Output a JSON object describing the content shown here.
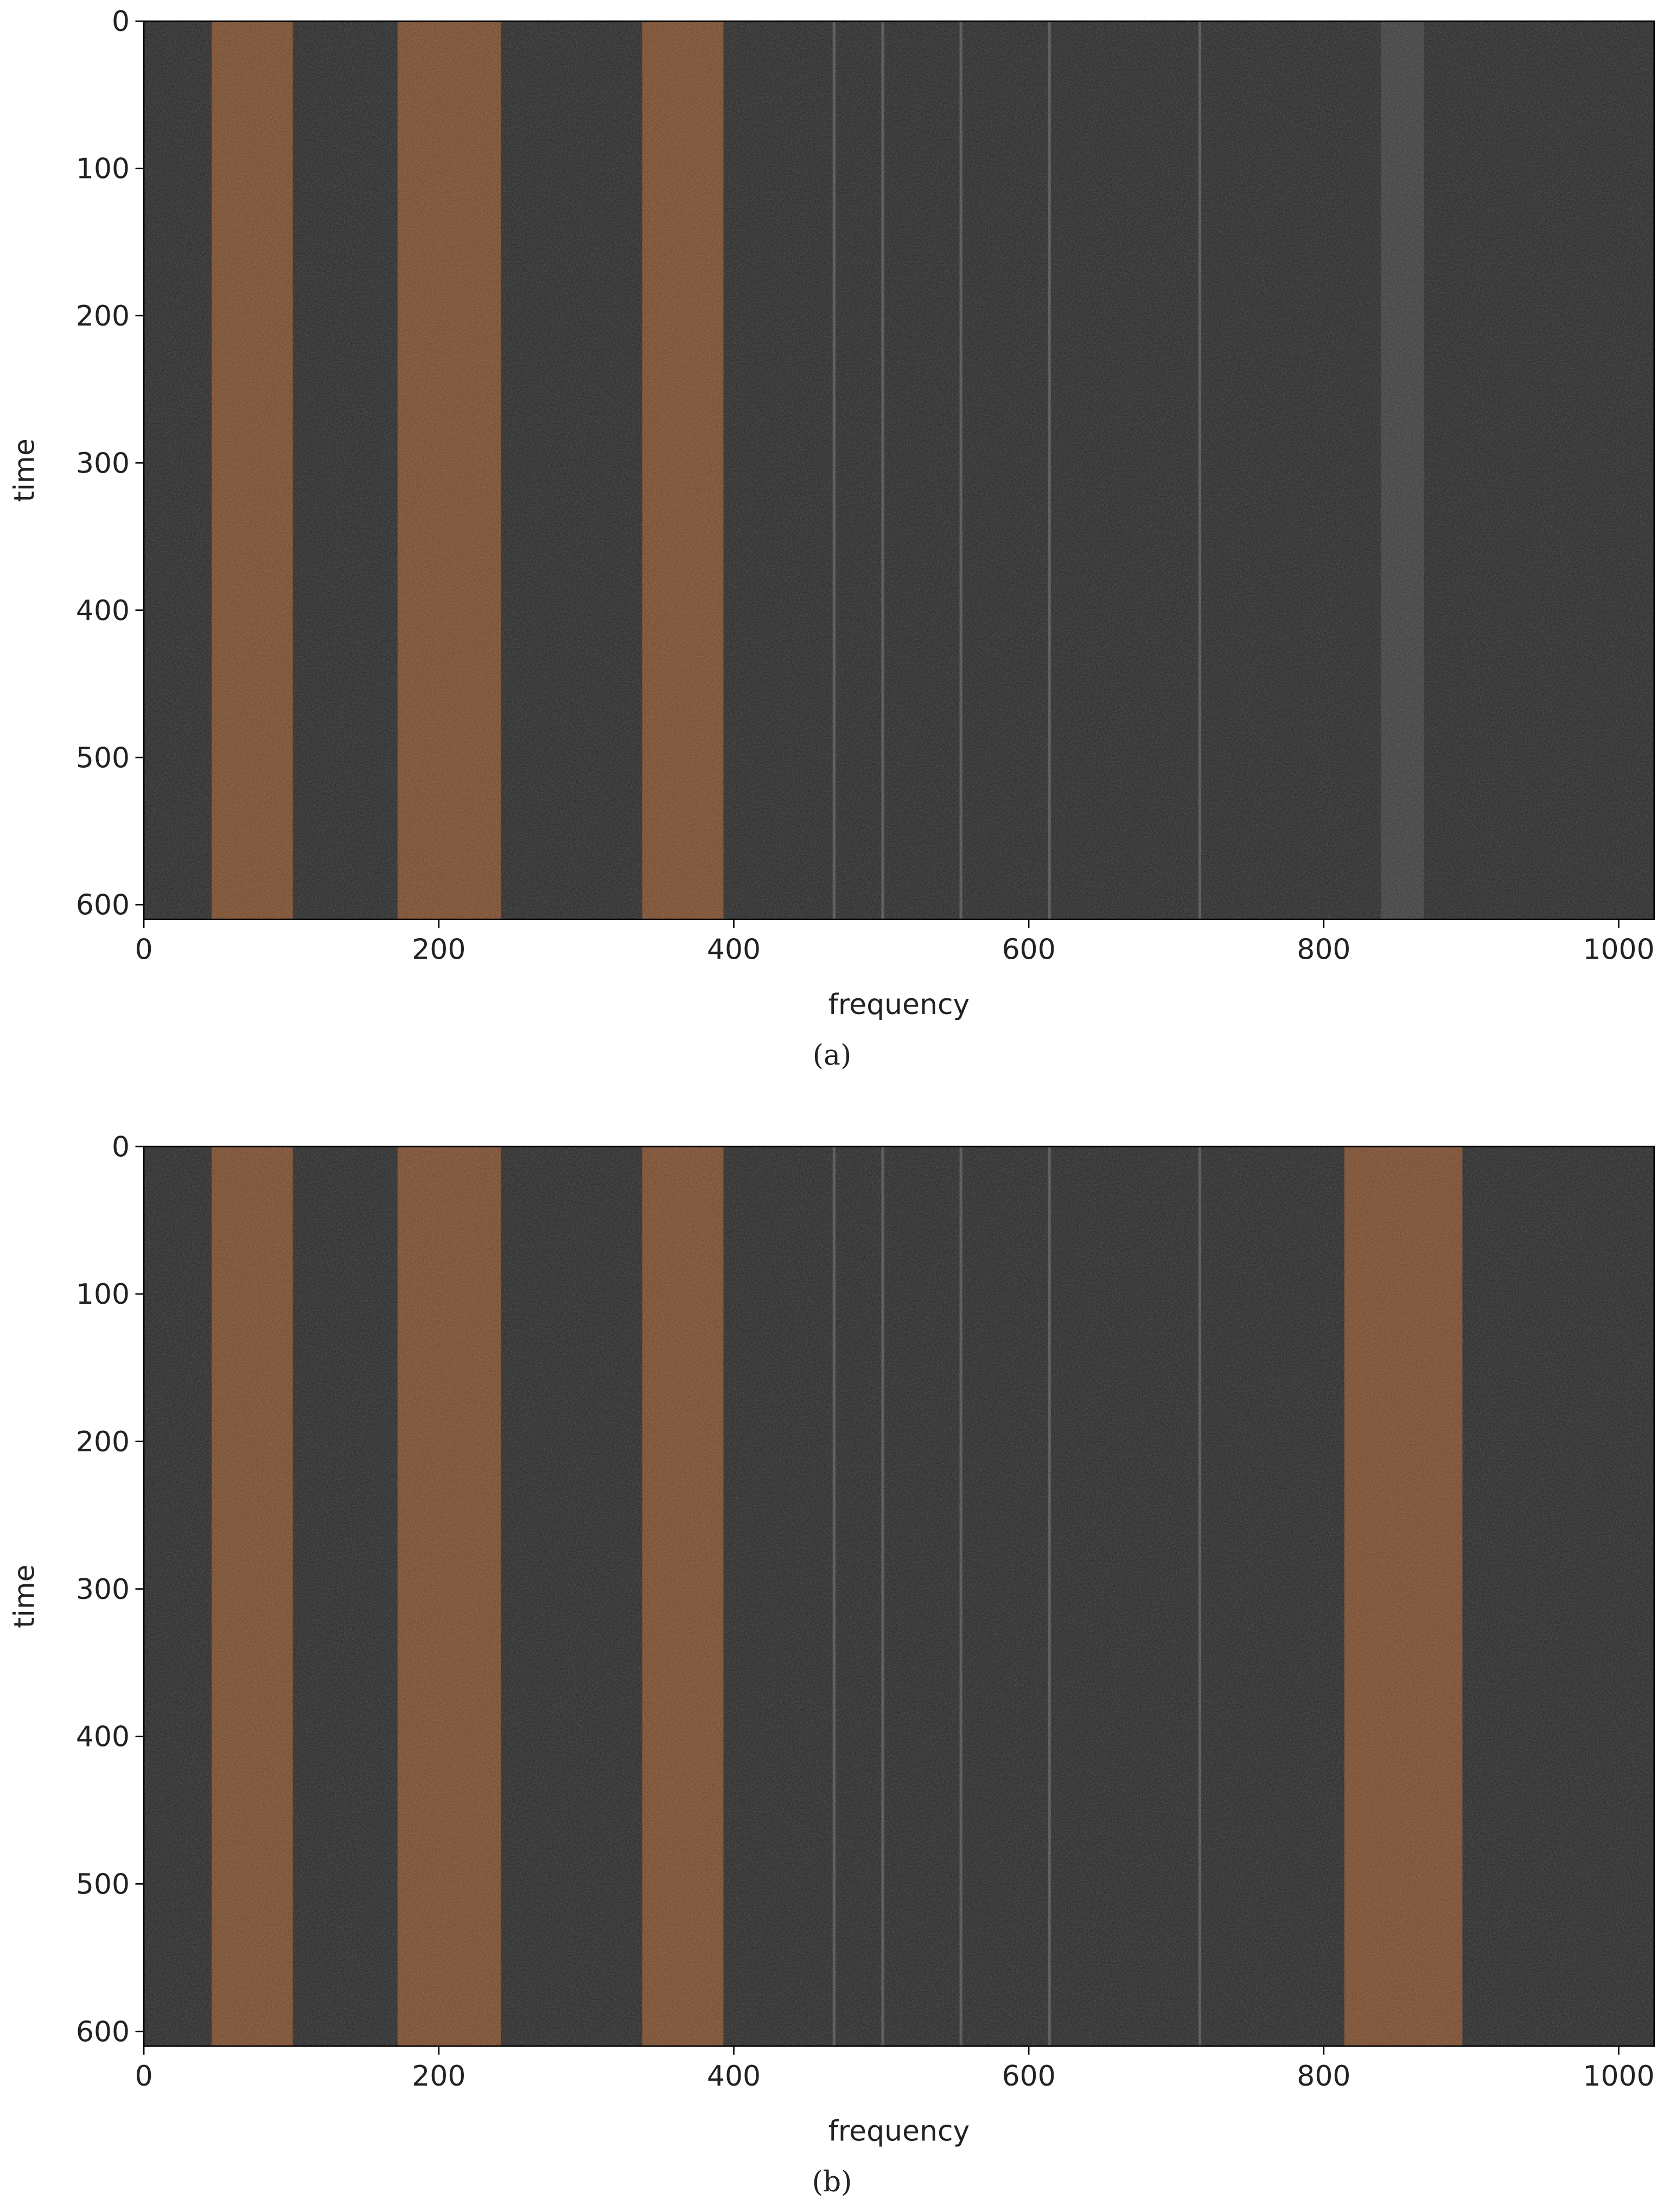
{
  "chart_data": [
    {
      "type": "spectrogram",
      "caption": "(a)",
      "x_label": "frequency",
      "y_label": "time",
      "xlim": [
        0,
        1024
      ],
      "ylim": [
        610,
        0
      ],
      "xticks": [
        0,
        200,
        400,
        600,
        800,
        1000
      ],
      "yticks": [
        0,
        100,
        200,
        300,
        400,
        500,
        600
      ],
      "background_color": "#2a2a2a",
      "band_color": "#774a2c",
      "line_color": "#505050",
      "faint_color": "#3e3e3e",
      "bands": [
        [
          46,
          101
        ],
        [
          172,
          242
        ],
        [
          338,
          393
        ]
      ],
      "faint_bands": [
        [
          839,
          868
        ]
      ],
      "lines": [
        468,
        501,
        554,
        614,
        716
      ]
    },
    {
      "type": "spectrogram",
      "caption": "(b)",
      "x_label": "frequency",
      "y_label": "time",
      "xlim": [
        0,
        1024
      ],
      "ylim": [
        610,
        0
      ],
      "xticks": [
        0,
        200,
        400,
        600,
        800,
        1000
      ],
      "yticks": [
        0,
        100,
        200,
        300,
        400,
        500,
        600
      ],
      "background_color": "#2a2a2a",
      "band_color": "#774a2c",
      "line_color": "#505050",
      "faint_color": "#3e3e3e",
      "bands": [
        [
          46,
          101
        ],
        [
          172,
          242
        ],
        [
          338,
          393
        ],
        [
          814,
          894
        ]
      ],
      "faint_bands": [],
      "lines": [
        468,
        501,
        554,
        614,
        716
      ]
    }
  ]
}
